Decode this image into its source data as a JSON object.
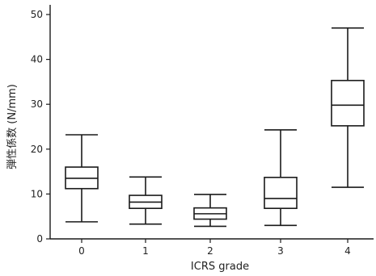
{
  "chart_data": {
    "type": "box",
    "xlabel": "ICRS grade",
    "ylabel": "弾性係数 (N/mm)",
    "ylim": [
      0,
      50
    ],
    "yticks": [
      0,
      10,
      20,
      30,
      40,
      50
    ],
    "categories": [
      "0",
      "1",
      "2",
      "3",
      "4"
    ],
    "series": [
      {
        "category": "0",
        "min": 3.8,
        "q1": 11.2,
        "median": 13.5,
        "q3": 16.0,
        "max": 23.2
      },
      {
        "category": "1",
        "min": 3.3,
        "q1": 6.8,
        "median": 8.2,
        "q3": 9.7,
        "max": 13.8
      },
      {
        "category": "2",
        "min": 2.8,
        "q1": 4.4,
        "median": 5.6,
        "q3": 6.9,
        "max": 9.9
      },
      {
        "category": "3",
        "min": 3.0,
        "q1": 6.8,
        "median": 9.0,
        "q3": 13.7,
        "max": 24.3
      },
      {
        "category": "4",
        "min": 11.5,
        "q1": 25.2,
        "median": 29.8,
        "q3": 35.3,
        "max": 47.0
      }
    ],
    "grid": false,
    "legend": "none",
    "colors": {
      "box_stroke": "#1a1a1a",
      "box_fill": "#ffffff",
      "axis": "#1a1a1a"
    }
  }
}
